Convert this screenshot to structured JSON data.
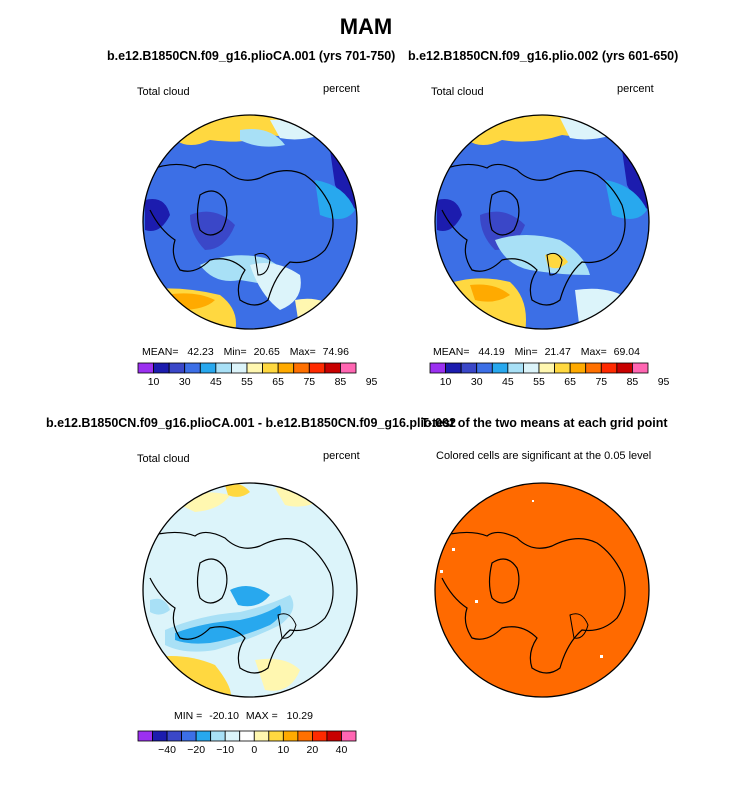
{
  "chart_data": {
    "type": "heatmap",
    "title": "MAM",
    "panels": [
      {
        "id": "p1",
        "title": "b.e12.B1850CN.f09_g16.plioCA.001 (yrs 701-750)",
        "left_label": "Total cloud",
        "right_label": "percent",
        "stats": {
          "mean_label": "MEAN=",
          "mean": "42.23",
          "min_label": "Min=",
          "min": "20.65",
          "max_label": "Max=",
          "max": "74.96"
        },
        "colorbar": {
          "colors": [
            "#9b30f0",
            "#1c1cae",
            "#3a47c8",
            "#3c6fe6",
            "#28a8ee",
            "#a8e0f6",
            "#dcf4fa",
            "#fff7b0",
            "#ffd840",
            "#ffaa00",
            "#ff7000",
            "#ff2a00",
            "#c80000",
            "#ff66b2"
          ],
          "labels": [
            "10",
            "30",
            "45",
            "55",
            "65",
            "75",
            "85",
            "95"
          ],
          "label_boxes": [
            1,
            3,
            5,
            7,
            9,
            11,
            13,
            15
          ]
        }
      },
      {
        "id": "p2",
        "title": "b.e12.B1850CN.f09_g16.plio.002 (yrs 601-650)",
        "left_label": "Total cloud",
        "right_label": "percent",
        "stats": {
          "mean_label": "MEAN=",
          "mean": "44.19",
          "min_label": "Min=",
          "min": "21.47",
          "max_label": "Max=",
          "max": "69.04"
        },
        "colorbar": {
          "colors": [
            "#9b30f0",
            "#1c1cae",
            "#3a47c8",
            "#3c6fe6",
            "#28a8ee",
            "#a8e0f6",
            "#dcf4fa",
            "#fff7b0",
            "#ffd840",
            "#ffaa00",
            "#ff7000",
            "#ff2a00",
            "#c80000",
            "#ff66b2"
          ],
          "labels": [
            "10",
            "30",
            "45",
            "55",
            "65",
            "75",
            "85",
            "95"
          ],
          "label_boxes": [
            1,
            3,
            5,
            7,
            9,
            11,
            13,
            15
          ]
        }
      },
      {
        "id": "p3",
        "title": "b.e12.B1850CN.f09_g16.plioCA.001 - b.e12.B1850CN.f09_g16.plio.002",
        "left_label": "Total cloud",
        "right_label": "percent",
        "stats": {
          "min_label": "MIN =",
          "min": "-20.10",
          "max_label": "MAX =",
          "max": "10.29"
        },
        "colorbar": {
          "colors": [
            "#9b30f0",
            "#1c1cae",
            "#3a47c8",
            "#3c6fe6",
            "#28a8ee",
            "#a8e0f6",
            "#dcf4fa",
            "#ffffff",
            "#fff7b0",
            "#ffd840",
            "#ffaa00",
            "#ff7000",
            "#ff2a00",
            "#c80000",
            "#ff66b2"
          ],
          "labels": [
            "−40",
            "−20",
            "−10",
            "0",
            "10",
            "20",
            "40"
          ],
          "label_boxes": [
            2,
            4,
            6,
            8,
            10,
            12,
            14
          ]
        }
      },
      {
        "id": "p4",
        "title": "T-test of the two means at each grid point",
        "subtitle": "Colored cells are significant at the 0.05 level",
        "fill": "#ff6a00"
      }
    ]
  }
}
